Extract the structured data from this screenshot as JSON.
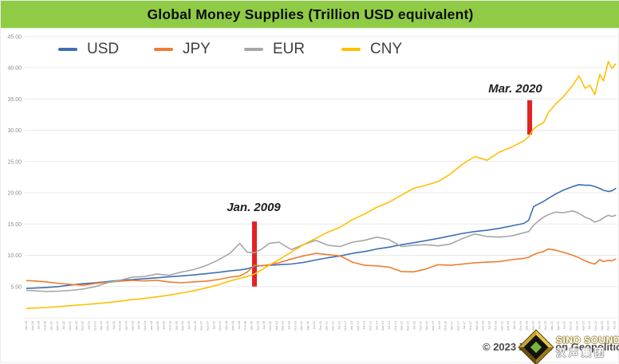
{
  "title": "Global Money Supplies (Trillion USD equivalent)",
  "legend": {
    "items": [
      {
        "label": "USD",
        "color": "#3E6FB4"
      },
      {
        "label": "JPY",
        "color": "#ED7D31"
      },
      {
        "label": "EUR",
        "color": "#A6A6A6"
      },
      {
        "label": "CNY",
        "color": "#FFC000"
      }
    ]
  },
  "chart_data": {
    "type": "line",
    "title": "Global Money Supplies (Trillion USD equivalent)",
    "xlabel": "",
    "ylabel": "",
    "grid": "horizontal",
    "legend_position": "top",
    "y_axis": {
      "min": 0,
      "max": 47,
      "tick_values": [
        45,
        40,
        35,
        30,
        25,
        20,
        15,
        10,
        5
      ],
      "tick_labels": [
        "45.00",
        "40.00",
        "35.00",
        "30.00",
        "25.00",
        "20.00",
        "15.00",
        "10.00",
        "5.00"
      ]
    },
    "x_axis": {
      "start_year": 1999.7,
      "end_year": 2023.75,
      "tick_labels": [
        "Jan-00",
        "Apr-00",
        "Jul-00",
        "Oct-00",
        "Jan-01",
        "Apr-01",
        "Jul-01",
        "Oct-01",
        "Jan-02",
        "Apr-02",
        "Jul-02",
        "Oct-02",
        "Jan-03",
        "Apr-03",
        "Jul-03",
        "Oct-03",
        "Jan-04",
        "Apr-04",
        "Jul-04",
        "Oct-04",
        "Jan-05",
        "Apr-05",
        "Jul-05",
        "Oct-05",
        "Jan-06",
        "Apr-06",
        "Jul-06",
        "Oct-06",
        "Jan-07",
        "Apr-07",
        "Jul-07",
        "Oct-07",
        "Jan-08",
        "Apr-08",
        "Jul-08",
        "Oct-08",
        "Jan-09",
        "Apr-09",
        "Jul-09",
        "Oct-09",
        "Jan-10",
        "Apr-10",
        "Jul-10",
        "Oct-10",
        "Jan-11",
        "Apr-11",
        "Jul-11",
        "Oct-11",
        "Jan-12",
        "Apr-12",
        "Jul-12",
        "Oct-12",
        "Jan-13",
        "Apr-13",
        "Jul-13",
        "Oct-13",
        "Jan-14",
        "Apr-14",
        "Jul-14",
        "Oct-14",
        "Jan-15",
        "Apr-15",
        "Jul-15",
        "Oct-15",
        "Jan-16",
        "Apr-16",
        "Jul-16",
        "Oct-16",
        "Jan-17",
        "Apr-17",
        "Jul-17",
        "Oct-17",
        "Jan-18",
        "Apr-18",
        "Jul-18",
        "Oct-18",
        "Jan-19",
        "Apr-19",
        "Jul-19",
        "Oct-19",
        "Jan-20",
        "Apr-20",
        "Jul-20",
        "Oct-20",
        "Jan-21",
        "Apr-21",
        "Jul-21",
        "Oct-21",
        "Jan-22",
        "Apr-22",
        "Jul-22",
        "Oct-22",
        "Jan-23",
        "Apr-23",
        "Jul-23"
      ]
    },
    "x": [
      1999.7,
      2000.0,
      2000.5,
      2001.0,
      2001.5,
      2002.0,
      2002.5,
      2003.0,
      2003.5,
      2004.0,
      2004.5,
      2005.0,
      2005.5,
      2006.0,
      2006.5,
      2007.0,
      2007.5,
      2008.0,
      2008.4,
      2008.7,
      2009.0,
      2009.3,
      2009.6,
      2010.0,
      2010.5,
      2011.0,
      2011.5,
      2012.0,
      2012.5,
      2013.0,
      2013.5,
      2014.0,
      2014.5,
      2015.0,
      2015.5,
      2016.0,
      2016.5,
      2017.0,
      2017.5,
      2018.0,
      2018.5,
      2019.0,
      2019.5,
      2020.0,
      2020.2,
      2020.4,
      2020.6,
      2020.8,
      2021.0,
      2021.3,
      2021.6,
      2022.0,
      2022.25,
      2022.5,
      2022.7,
      2022.9,
      2023.1,
      2023.25,
      2023.45,
      2023.6,
      2023.75
    ],
    "series": [
      {
        "name": "USD",
        "color": "#3E6FB4",
        "values": [
          4.7,
          4.75,
          4.85,
          5.0,
          5.25,
          5.45,
          5.6,
          5.8,
          6.0,
          6.1,
          6.25,
          6.4,
          6.55,
          6.7,
          6.85,
          7.05,
          7.25,
          7.5,
          7.65,
          7.85,
          8.2,
          8.35,
          8.4,
          8.5,
          8.6,
          8.85,
          9.25,
          9.6,
          9.9,
          10.3,
          10.6,
          11.0,
          11.3,
          11.7,
          12.0,
          12.35,
          12.7,
          13.1,
          13.5,
          13.8,
          14.0,
          14.3,
          14.7,
          15.1,
          15.6,
          17.8,
          18.2,
          18.6,
          19.1,
          19.8,
          20.4,
          21.0,
          21.3,
          21.2,
          21.2,
          21.0,
          20.7,
          20.4,
          20.2,
          20.3,
          20.7
        ]
      },
      {
        "name": "JPY",
        "color": "#ED7D31",
        "values": [
          5.95,
          5.9,
          5.75,
          5.5,
          5.35,
          5.2,
          5.5,
          5.7,
          5.85,
          6.0,
          5.9,
          6.0,
          5.75,
          5.6,
          5.75,
          5.85,
          6.1,
          6.5,
          6.7,
          7.3,
          8.4,
          8.3,
          8.5,
          8.8,
          9.4,
          9.9,
          10.3,
          10.1,
          9.9,
          8.9,
          8.4,
          8.3,
          8.1,
          7.4,
          7.35,
          7.8,
          8.5,
          8.4,
          8.6,
          8.8,
          8.9,
          9.0,
          9.3,
          9.5,
          9.7,
          10.1,
          10.4,
          10.6,
          11.0,
          10.8,
          10.5,
          10.0,
          9.6,
          9.1,
          8.8,
          8.6,
          9.3,
          9.0,
          9.2,
          9.1,
          9.4
        ]
      },
      {
        "name": "EUR",
        "color": "#A6A6A6",
        "values": [
          4.4,
          4.35,
          4.2,
          4.25,
          4.4,
          4.6,
          5.0,
          5.6,
          6.0,
          6.5,
          6.6,
          7.0,
          6.8,
          7.3,
          7.7,
          8.3,
          9.2,
          10.3,
          11.9,
          10.5,
          10.4,
          11.0,
          11.9,
          12.1,
          10.9,
          11.7,
          12.4,
          11.6,
          11.4,
          12.1,
          12.4,
          12.9,
          12.5,
          11.4,
          11.6,
          11.7,
          11.5,
          11.8,
          12.7,
          13.4,
          13.0,
          12.9,
          13.1,
          13.6,
          13.8,
          14.8,
          15.5,
          16.1,
          16.5,
          16.9,
          16.8,
          17.1,
          16.7,
          16.1,
          15.8,
          15.3,
          15.6,
          16.0,
          16.4,
          16.2,
          16.4
        ]
      },
      {
        "name": "CNY",
        "color": "#FFC000",
        "values": [
          1.5,
          1.55,
          1.65,
          1.8,
          1.95,
          2.1,
          2.25,
          2.45,
          2.65,
          2.9,
          3.1,
          3.35,
          3.6,
          3.95,
          4.3,
          4.75,
          5.25,
          5.9,
          6.3,
          6.6,
          7.0,
          7.7,
          8.4,
          9.3,
          10.5,
          11.7,
          12.7,
          13.7,
          14.5,
          15.7,
          16.6,
          17.7,
          18.5,
          19.6,
          20.7,
          21.2,
          21.8,
          23.0,
          24.6,
          25.8,
          25.2,
          26.5,
          27.3,
          28.3,
          29.0,
          30.2,
          30.8,
          31.2,
          32.8,
          34.2,
          35.3,
          37.2,
          38.7,
          36.7,
          37.2,
          35.7,
          38.9,
          37.9,
          41.0,
          39.9,
          40.6
        ]
      }
    ],
    "annotation_color": "#E32222",
    "annotations": [
      {
        "label": "Jan. 2009",
        "year": 2009.0,
        "bar_value_range": [
          5.0,
          15.4
        ]
      },
      {
        "label": "Mar. 2020",
        "year": 2020.24,
        "bar_value_range": [
          29.3,
          34.8
        ]
      }
    ]
  },
  "footer": {
    "copyright": "© 2023 Zeihan on Geopolitics",
    "watermark": {
      "line1": "SINO SOUND",
      "line2": "汉声集团"
    }
  }
}
